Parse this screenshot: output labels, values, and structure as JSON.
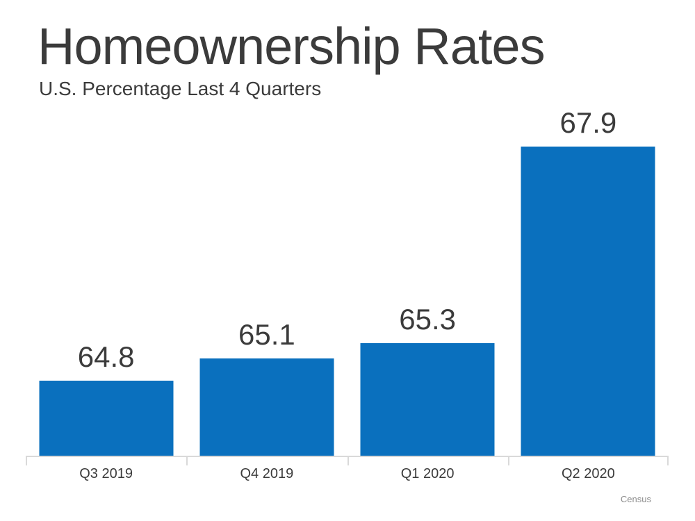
{
  "page": {
    "background_color": "#ffffff",
    "text_color": "#3b3b3b"
  },
  "header": {
    "title": "Homeownership Rates",
    "subtitle": "U.S. Percentage Last 4 Quarters"
  },
  "footer": {
    "source_note": "Census"
  },
  "chart_data": {
    "type": "bar",
    "title": "Homeownership Rates",
    "subtitle": "U.S. Percentage Last 4 Quarters",
    "categories": [
      "Q3 2019",
      "Q4 2019",
      "Q1 2020",
      "Q2 2020"
    ],
    "values": [
      64.8,
      65.1,
      65.3,
      67.9
    ],
    "data_labels": [
      "64.8",
      "65.1",
      "65.3",
      "67.9"
    ],
    "xlabel": "",
    "ylabel": "",
    "ylim": [
      63.8,
      68.3
    ],
    "grid": false,
    "legend": false,
    "y_axis_visible": false,
    "bar_color": "#0a70be",
    "axis_color": "#d9d9d9",
    "label_color": "#3b3b3b",
    "source_note": "Census"
  }
}
